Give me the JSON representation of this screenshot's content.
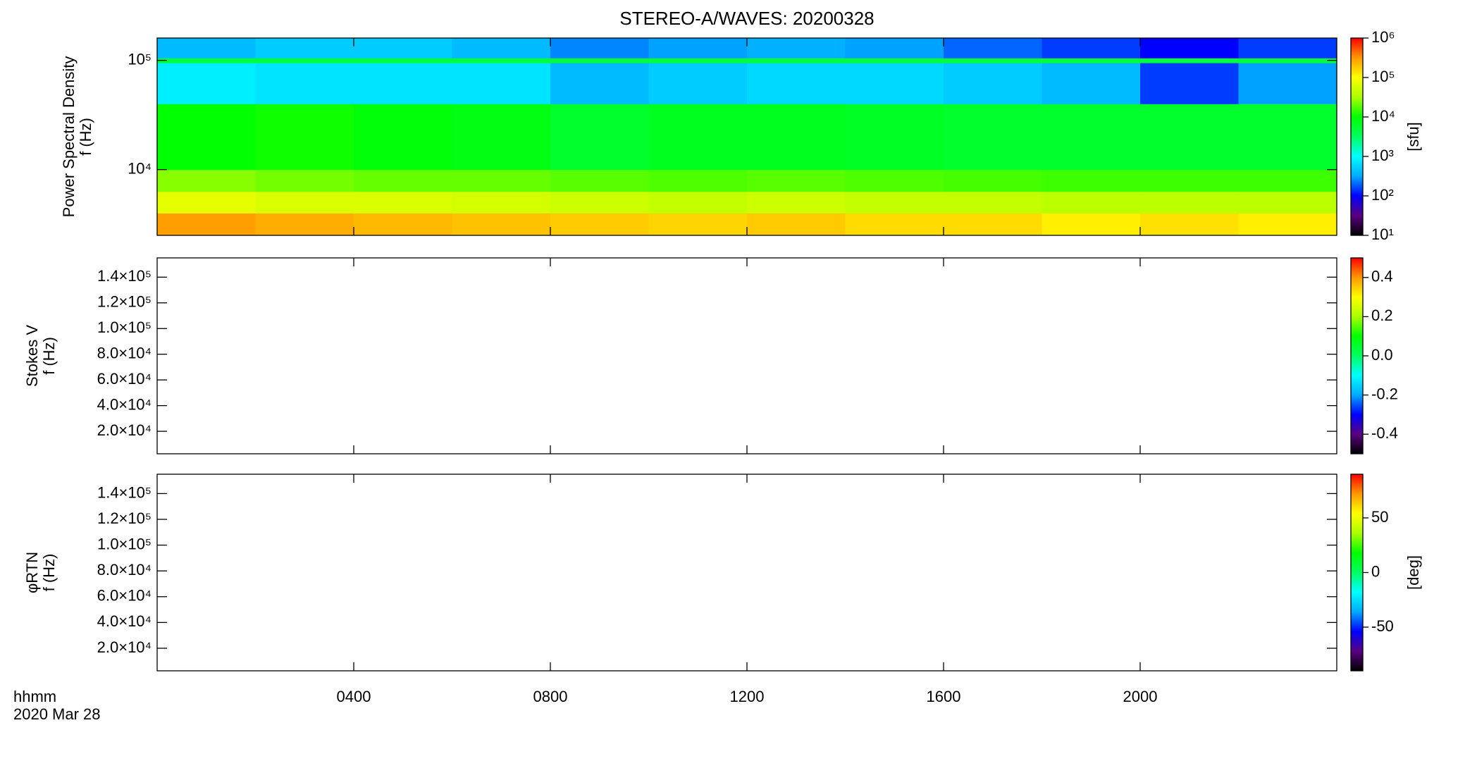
{
  "chart_data": [
    {
      "type": "heatmap",
      "title": "STEREO-A/WAVES: 20200328",
      "ylabel": [
        "Power Spectral Density",
        "f (Hz)"
      ],
      "ylog": true,
      "ylim": [
        2500,
        160000
      ],
      "yticks": [
        {
          "value": 10000,
          "label": "10⁴"
        },
        {
          "value": 100000,
          "label": "10⁵"
        }
      ],
      "xlim": [
        0,
        24
      ],
      "x_edges": [
        0,
        2,
        4,
        6,
        8,
        10,
        12,
        14,
        16,
        18,
        20,
        22,
        24
      ],
      "y_edges": [
        2500,
        4000,
        6300,
        10000,
        40000,
        95000,
        105000,
        160000
      ],
      "values": [
        [
          300000,
          250000,
          220000,
          200000,
          180000,
          160000,
          180000,
          150000,
          150000,
          120000,
          140000,
          120000
        ],
        [
          70000,
          60000,
          60000,
          55000,
          50000,
          45000,
          50000,
          45000,
          45000,
          40000,
          40000,
          40000
        ],
        [
          25000,
          22000,
          20000,
          20000,
          18000,
          17000,
          18000,
          17000,
          16000,
          15000,
          15000,
          15000
        ],
        [
          10000,
          11000,
          9000,
          8000,
          6000,
          7000,
          7000,
          6500,
          6000,
          6000,
          6000,
          6000
        ],
        [
          800,
          700,
          700,
          700,
          400,
          500,
          600,
          600,
          500,
          400,
          150,
          300
        ],
        [
          5000,
          5000,
          5000,
          5000,
          5000,
          5000,
          5000,
          5000,
          5000,
          5000,
          5000,
          5000
        ],
        [
          400,
          500,
          500,
          400,
          250,
          300,
          350,
          300,
          200,
          150,
          100,
          150
        ]
      ],
      "colorbar": {
        "log": true,
        "lim": [
          10,
          1000000
        ],
        "label": "[sfu]",
        "ticks": [
          {
            "value": 10,
            "label": "10¹"
          },
          {
            "value": 100,
            "label": "10²"
          },
          {
            "value": 1000,
            "label": "10³"
          },
          {
            "value": 10000,
            "label": "10⁴"
          },
          {
            "value": 100000,
            "label": "10⁵"
          },
          {
            "value": 1000000,
            "label": "10⁶"
          }
        ],
        "colormap": [
          "#000000",
          "#5a0080",
          "#0000ff",
          "#00aaff",
          "#00ffff",
          "#00ff60",
          "#00ff00",
          "#aaff00",
          "#ffff00",
          "#ff9900",
          "#ff0000"
        ]
      }
    },
    {
      "type": "heatmap",
      "ylabel": [
        "Stokes V",
        "f (Hz)"
      ],
      "ylog": false,
      "ylim": [
        2500,
        155000
      ],
      "yticks": [
        {
          "value": 20000,
          "label": "2.0×10⁴"
        },
        {
          "value": 40000,
          "label": "4.0×10⁴"
        },
        {
          "value": 60000,
          "label": "6.0×10⁴"
        },
        {
          "value": 80000,
          "label": "8.0×10⁴"
        },
        {
          "value": 100000,
          "label": "1.0×10⁵"
        },
        {
          "value": 120000,
          "label": "1.2×10⁵"
        },
        {
          "value": 140000,
          "label": "1.4×10⁵"
        }
      ],
      "xlim": [
        0,
        24
      ],
      "colorbar": {
        "log": false,
        "lim": [
          -0.5,
          0.5
        ],
        "ticks": [
          -0.4,
          -0.2,
          {
            "value": 0,
            "label": "0.0"
          },
          0.2,
          0.4
        ],
        "colormap": [
          "#000000",
          "#5a0080",
          "#0000ff",
          "#00aaff",
          "#00ffff",
          "#00ff60",
          "#00ff00",
          "#aaff00",
          "#ffff00",
          "#ff9900",
          "#ff0000"
        ]
      }
    },
    {
      "type": "heatmap",
      "ylabel": [
        "φRTN",
        "f (Hz)"
      ],
      "ylog": false,
      "ylim": [
        2500,
        155000
      ],
      "yticks": [
        {
          "value": 20000,
          "label": "2.0×10⁴"
        },
        {
          "value": 40000,
          "label": "4.0×10⁴"
        },
        {
          "value": 60000,
          "label": "6.0×10⁴"
        },
        {
          "value": 80000,
          "label": "8.0×10⁴"
        },
        {
          "value": 100000,
          "label": "1.0×10⁵"
        },
        {
          "value": 120000,
          "label": "1.2×10⁵"
        },
        {
          "value": 140000,
          "label": "1.4×10⁵"
        }
      ],
      "xlim": [
        0,
        24
      ],
      "xticks": [
        {
          "value": 4,
          "label": "0400"
        },
        {
          "value": 8,
          "label": "0800"
        },
        {
          "value": 12,
          "label": "1200"
        },
        {
          "value": 16,
          "label": "1600"
        },
        {
          "value": 20,
          "label": "2000"
        }
      ],
      "time_label": "hhmm",
      "date_label": "2020 Mar 28",
      "colorbar": {
        "log": false,
        "lim": [
          -90,
          90
        ],
        "label": "[deg]",
        "ticks": [
          -50,
          0,
          50
        ],
        "colormap": [
          "#000000",
          "#5a0080",
          "#0000ff",
          "#00aaff",
          "#00ffff",
          "#00ff60",
          "#00ff00",
          "#aaff00",
          "#ffff00",
          "#ff9900",
          "#ff0000"
        ]
      }
    }
  ]
}
